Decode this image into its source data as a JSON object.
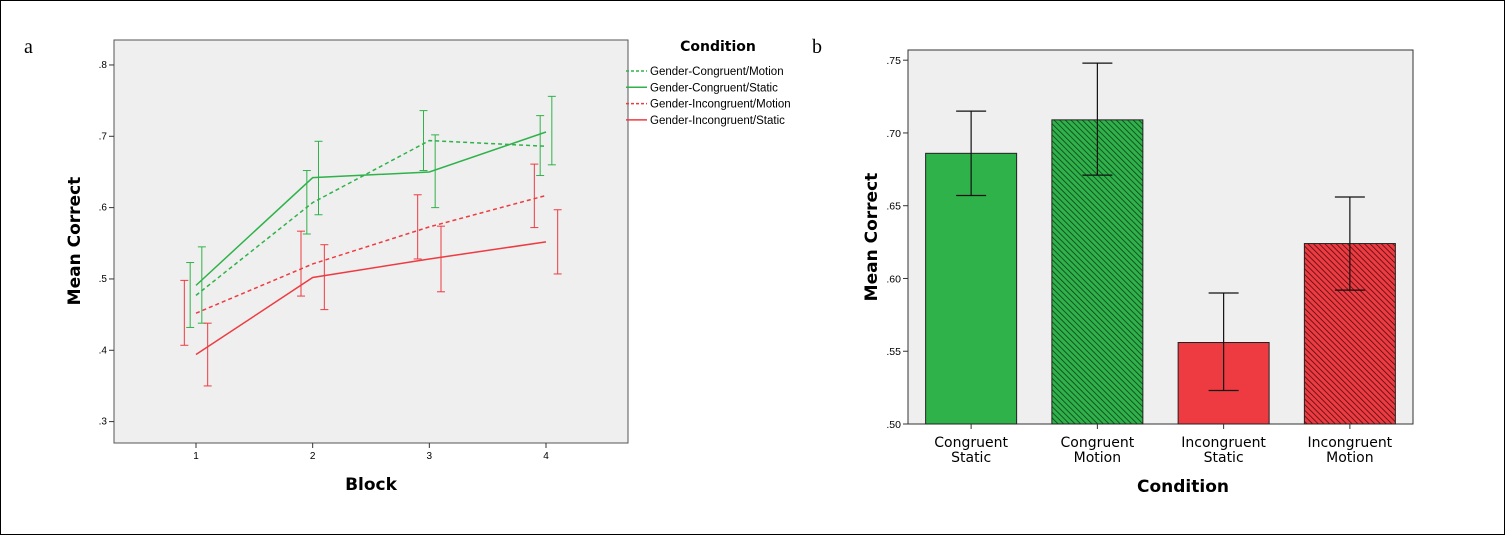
{
  "panel_letters": {
    "a": "a",
    "b": "b"
  },
  "colors": {
    "green": "#2fb24a",
    "red": "#ee3b42",
    "green_dark_hatch": "#0f3d18",
    "red_dark_hatch": "#4a0b0e",
    "plot_bg": "#efefef"
  },
  "chart_data": [
    {
      "type": "line",
      "panel": "a",
      "xlabel": "Block",
      "ylabel": "Mean Correct",
      "x": [
        1,
        2,
        3,
        4
      ],
      "x_tick_labels": [
        "1",
        "2",
        "3",
        "4"
      ],
      "ylim": [
        0.27,
        0.835
      ],
      "y_ticks": [
        0.3,
        0.4,
        0.5,
        0.6,
        0.7,
        0.8
      ],
      "y_tick_labels": [
        ".3",
        ".4",
        ".5",
        ".6",
        ".7",
        ".8"
      ],
      "legend": {
        "title": "Condition",
        "position": "right"
      },
      "series": [
        {
          "name": "Gender-Congruent/Motion",
          "color": "green",
          "dash": true,
          "offset": -0.05,
          "values": [
            0.477,
            0.607,
            0.694,
            0.686
          ],
          "err_low": [
            0.432,
            0.563,
            0.652,
            0.645
          ],
          "err_high": [
            0.523,
            0.652,
            0.736,
            0.729
          ]
        },
        {
          "name": "Gender-Congruent/Static",
          "color": "green",
          "dash": false,
          "offset": 0.05,
          "values": [
            0.491,
            0.642,
            0.65,
            0.706
          ],
          "err_low": [
            0.438,
            0.59,
            0.6,
            0.66
          ],
          "err_high": [
            0.545,
            0.693,
            0.702,
            0.756
          ]
        },
        {
          "name": "Gender-Incongruent/Motion",
          "color": "red",
          "dash": true,
          "offset": -0.1,
          "values": [
            0.452,
            0.521,
            0.573,
            0.617
          ],
          "err_low": [
            0.407,
            0.476,
            0.528,
            0.572
          ],
          "err_high": [
            0.498,
            0.567,
            0.618,
            0.661
          ]
        },
        {
          "name": "Gender-Incongruent/Static",
          "color": "red",
          "dash": false,
          "offset": 0.1,
          "values": [
            0.394,
            0.502,
            0.528,
            0.552
          ],
          "err_low": [
            0.35,
            0.457,
            0.482,
            0.507
          ],
          "err_high": [
            0.438,
            0.548,
            0.574,
            0.597
          ]
        }
      ]
    },
    {
      "type": "bar",
      "panel": "b",
      "xlabel": "Condition",
      "ylabel": "Mean Correct",
      "ylim": [
        0.5,
        0.757
      ],
      "y_ticks": [
        0.5,
        0.55,
        0.6,
        0.65,
        0.7,
        0.75
      ],
      "y_tick_labels": [
        ".50",
        ".55",
        ".60",
        ".65",
        ".70",
        ".75"
      ],
      "categories": [
        [
          "Congruent",
          "Static"
        ],
        [
          "Congruent",
          "Motion"
        ],
        [
          "Incongruent",
          "Static"
        ],
        [
          "Incongruent",
          "Motion"
        ]
      ],
      "values": [
        0.686,
        0.709,
        0.556,
        0.624
      ],
      "err_low": [
        0.657,
        0.671,
        0.523,
        0.592
      ],
      "err_high": [
        0.715,
        0.748,
        0.59,
        0.656
      ],
      "bar_colors": [
        "green",
        "green",
        "red",
        "red"
      ],
      "hatched": [
        false,
        true,
        false,
        true
      ]
    }
  ]
}
